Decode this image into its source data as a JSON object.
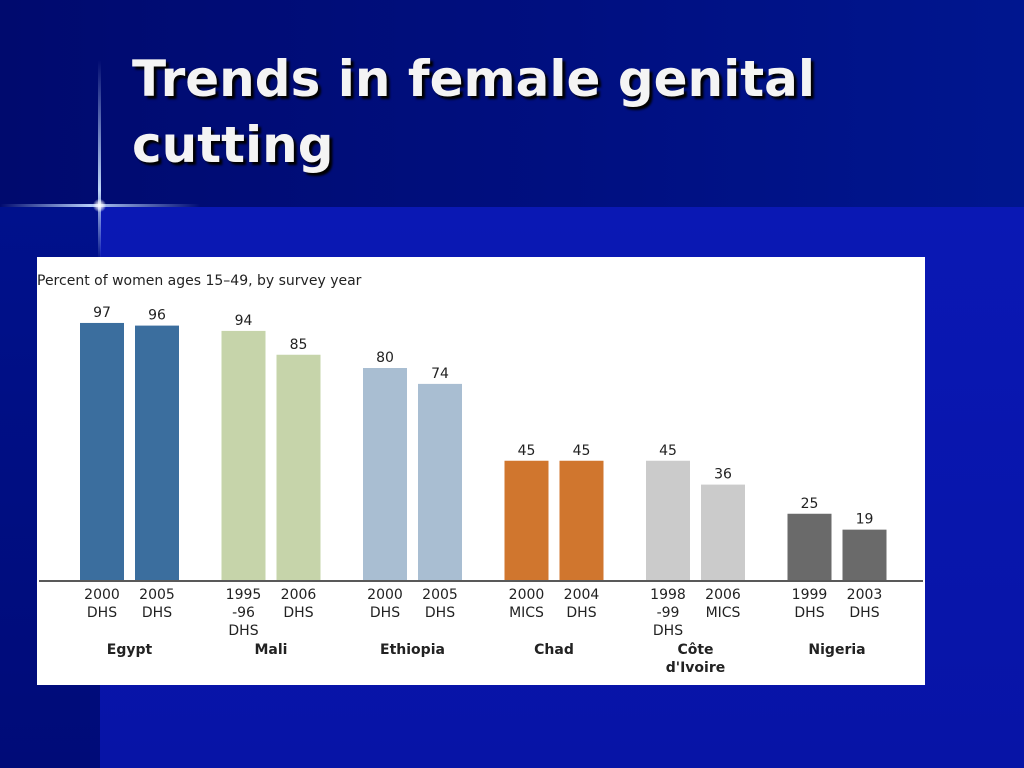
{
  "slide": {
    "title_line1": "Trends in female genital",
    "title_line2": "cutting"
  },
  "colors": {
    "background": "#0a14a8",
    "title_text": "#f4f4f4",
    "egypt": "#3b6e9e",
    "mali": "#c6d4aa",
    "ethiopia": "#a9bed2",
    "chad": "#d0762e",
    "cote_divoire": "#cbcbcb",
    "nigeria": "#6a6a6a"
  },
  "chart_data": {
    "type": "bar",
    "title": "",
    "subtitle": "Percent of women ages 15–49, by survey year",
    "xlabel": "",
    "ylabel": "",
    "ylim": [
      0,
      100
    ],
    "grid": false,
    "groups": [
      {
        "country_lines": [
          "Egypt"
        ],
        "color": "#3b6e9e",
        "bars": [
          {
            "value": 97,
            "label_lines": [
              "2000",
              "DHS"
            ]
          },
          {
            "value": 96,
            "label_lines": [
              "2005",
              "DHS"
            ]
          }
        ]
      },
      {
        "country_lines": [
          "Mali"
        ],
        "color": "#c6d4aa",
        "bars": [
          {
            "value": 94,
            "label_lines": [
              "1995",
              "-96",
              "DHS"
            ]
          },
          {
            "value": 85,
            "label_lines": [
              "2006",
              "DHS"
            ]
          }
        ]
      },
      {
        "country_lines": [
          "Ethiopia"
        ],
        "color": "#a9bed2",
        "bars": [
          {
            "value": 80,
            "label_lines": [
              "2000",
              "DHS"
            ]
          },
          {
            "value": 74,
            "label_lines": [
              "2005",
              "DHS"
            ]
          }
        ]
      },
      {
        "country_lines": [
          "Chad"
        ],
        "color": "#d0762e",
        "bars": [
          {
            "value": 45,
            "label_lines": [
              "2000",
              "MICS"
            ]
          },
          {
            "value": 45,
            "label_lines": [
              "2004",
              "DHS"
            ]
          }
        ]
      },
      {
        "country_lines": [
          "Côte",
          "d'Ivoire"
        ],
        "color": "#cbcbcb",
        "bars": [
          {
            "value": 45,
            "label_lines": [
              "1998",
              "-99",
              "DHS"
            ]
          },
          {
            "value": 36,
            "label_lines": [
              "2006",
              "MICS"
            ]
          }
        ]
      },
      {
        "country_lines": [
          "Nigeria"
        ],
        "color": "#6a6a6a",
        "bars": [
          {
            "value": 25,
            "label_lines": [
              "1999",
              "DHS"
            ]
          },
          {
            "value": 19,
            "label_lines": [
              "2003",
              "DHS"
            ]
          }
        ]
      }
    ]
  }
}
